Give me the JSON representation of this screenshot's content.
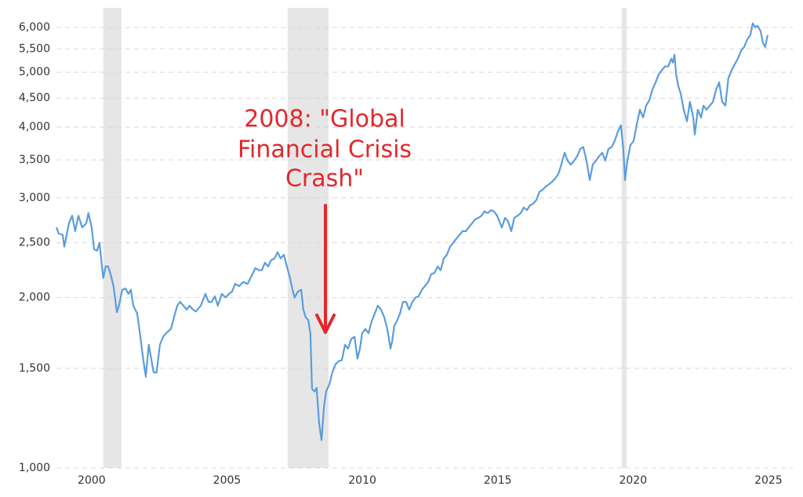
{
  "chart_data": {
    "type": "line",
    "log_scale": true,
    "grid": true,
    "color": "#5b9ddb",
    "shade_color": "#e6e6e6",
    "annotation_color": "#e0282c",
    "annotation": [
      "2008: \"Global",
      "Financial Crisis",
      "Crash\""
    ],
    "shaded_ranges": [
      [
        2000.43,
        2001.1
      ],
      [
        2007.24,
        2008.75
      ],
      [
        2019.58,
        2019.76
      ]
    ],
    "xlim": [
      1998.7,
      2025.9
    ],
    "xticks": [
      2000,
      2005,
      2010,
      2015,
      2020,
      2025
    ],
    "ylim": [
      1000,
      6000
    ],
    "yticks": [
      {
        "value": 1000,
        "label": "1,000"
      },
      {
        "value": 1500,
        "label": "1,500"
      },
      {
        "value": 2000,
        "label": "2,000"
      },
      {
        "value": 2500,
        "label": "2,500"
      },
      {
        "value": 3000,
        "label": "3,000"
      },
      {
        "value": 3500,
        "label": "3,500"
      },
      {
        "value": 4000,
        "label": "4,000"
      },
      {
        "value": 4500,
        "label": "4,500"
      },
      {
        "value": 5000,
        "label": "5,000"
      },
      {
        "value": 5500,
        "label": "5,500"
      },
      {
        "value": 6000,
        "label": "6,000"
      }
    ],
    "x": [
      1998.7,
      1998.78,
      1998.93,
      1998.99,
      1999.16,
      1999.28,
      1999.39,
      1999.51,
      1999.65,
      1999.8,
      1999.88,
      2000.0,
      2000.09,
      2000.2,
      2000.29,
      2000.38,
      2000.43,
      2000.52,
      2000.61,
      2000.7,
      2000.81,
      2000.93,
      2001.01,
      2001.13,
      2001.25,
      2001.36,
      2001.45,
      2001.54,
      2001.68,
      2001.8,
      2001.91,
      2002.0,
      2002.11,
      2002.2,
      2002.29,
      2002.4,
      2002.52,
      2002.64,
      2002.75,
      2002.93,
      2003.04,
      2003.16,
      2003.27,
      2003.39,
      2003.51,
      2003.62,
      2003.74,
      2003.85,
      2004.03,
      2004.2,
      2004.32,
      2004.43,
      2004.55,
      2004.66,
      2004.81,
      2004.95,
      2005.07,
      2005.19,
      2005.3,
      2005.45,
      2005.59,
      2005.76,
      2005.94,
      2006.05,
      2006.17,
      2006.29,
      2006.4,
      2006.52,
      2006.63,
      2006.75,
      2006.87,
      2006.98,
      2007.1,
      2007.21,
      2007.33,
      2007.42,
      2007.5,
      2007.62,
      2007.74,
      2007.82,
      2007.91,
      2008.0,
      2008.08,
      2008.14,
      2008.23,
      2008.31,
      2008.4,
      2008.49,
      2008.58,
      2008.66,
      2008.78,
      2008.89,
      2009.01,
      2009.13,
      2009.24,
      2009.36,
      2009.47,
      2009.59,
      2009.71,
      2009.82,
      2009.91,
      2009.99,
      2010.11,
      2010.23,
      2010.34,
      2010.46,
      2010.57,
      2010.69,
      2010.81,
      2010.92,
      2011.04,
      2011.1,
      2011.18,
      2011.27,
      2011.39,
      2011.5,
      2011.62,
      2011.73,
      2011.85,
      2011.96,
      2012.08,
      2012.2,
      2012.31,
      2012.43,
      2012.54,
      2012.66,
      2012.78,
      2012.89,
      2013.01,
      2013.12,
      2013.24,
      2013.36,
      2013.47,
      2013.59,
      2013.7,
      2013.82,
      2013.93,
      2014.05,
      2014.17,
      2014.28,
      2014.4,
      2014.51,
      2014.63,
      2014.75,
      2014.86,
      2014.98,
      2015.09,
      2015.15,
      2015.27,
      2015.38,
      2015.5,
      2015.61,
      2015.73,
      2015.85,
      2015.96,
      2016.08,
      2016.19,
      2016.31,
      2016.43,
      2016.54,
      2016.66,
      2016.77,
      2016.89,
      2017.01,
      2017.12,
      2017.24,
      2017.35,
      2017.47,
      2017.58,
      2017.7,
      2017.82,
      2017.93,
      2018.05,
      2018.16,
      2018.28,
      2018.4,
      2018.51,
      2018.63,
      2018.74,
      2018.86,
      2018.97,
      2019.09,
      2019.21,
      2019.32,
      2019.44,
      2019.55,
      2019.64,
      2019.7,
      2019.79,
      2019.9,
      2020.02,
      2020.13,
      2020.25,
      2020.37,
      2020.48,
      2020.6,
      2020.71,
      2020.83,
      2020.95,
      2021.06,
      2021.18,
      2021.3,
      2021.41,
      2021.47,
      2021.53,
      2021.59,
      2021.67,
      2021.76,
      2021.87,
      2021.99,
      2022.1,
      2022.22,
      2022.28,
      2022.39,
      2022.51,
      2022.6,
      2022.71,
      2022.83,
      2022.95,
      2023.06,
      2023.18,
      2023.29,
      2023.41,
      2023.52,
      2023.64,
      2023.76,
      2023.87,
      2023.99,
      2024.1,
      2024.22,
      2024.33,
      2024.42,
      2024.51,
      2024.6,
      2024.71,
      2024.8,
      2024.88,
      2024.97
    ],
    "values": [
      2660,
      2595,
      2580,
      2460,
      2705,
      2790,
      2620,
      2790,
      2660,
      2705,
      2820,
      2660,
      2435,
      2420,
      2500,
      2270,
      2165,
      2270,
      2270,
      2200,
      2095,
      1885,
      1935,
      2065,
      2075,
      2030,
      2065,
      1935,
      1875,
      1705,
      1550,
      1450,
      1650,
      1560,
      1475,
      1475,
      1650,
      1705,
      1730,
      1760,
      1845,
      1935,
      1965,
      1935,
      1905,
      1935,
      1905,
      1890,
      1935,
      2030,
      1965,
      1965,
      2010,
      1935,
      2030,
      2000,
      2030,
      2050,
      2115,
      2095,
      2130,
      2115,
      2200,
      2255,
      2235,
      2235,
      2305,
      2270,
      2330,
      2345,
      2405,
      2345,
      2380,
      2270,
      2165,
      2065,
      2000,
      2050,
      2065,
      1905,
      1845,
      1825,
      1730,
      1380,
      1365,
      1385,
      1200,
      1120,
      1280,
      1365,
      1405,
      1475,
      1525,
      1545,
      1550,
      1650,
      1625,
      1690,
      1705,
      1560,
      1625,
      1730,
      1760,
      1730,
      1815,
      1875,
      1935,
      1905,
      1845,
      1760,
      1625,
      1675,
      1785,
      1815,
      1875,
      1965,
      1965,
      1905,
      1965,
      2000,
      2010,
      2065,
      2095,
      2130,
      2200,
      2210,
      2270,
      2235,
      2345,
      2380,
      2460,
      2500,
      2540,
      2580,
      2620,
      2620,
      2660,
      2705,
      2750,
      2765,
      2790,
      2840,
      2820,
      2855,
      2840,
      2790,
      2705,
      2660,
      2765,
      2730,
      2620,
      2765,
      2790,
      2820,
      2885,
      2855,
      2910,
      2930,
      2975,
      3075,
      3100,
      3140,
      3170,
      3205,
      3245,
      3305,
      3435,
      3605,
      3490,
      3435,
      3490,
      3550,
      3660,
      3690,
      3490,
      3225,
      3435,
      3490,
      3550,
      3605,
      3490,
      3660,
      3690,
      3780,
      3930,
      4030,
      3660,
      3225,
      3490,
      3720,
      3780,
      4030,
      4295,
      4160,
      4365,
      4460,
      4650,
      4800,
      4960,
      5040,
      5120,
      5120,
      5285,
      5200,
      5370,
      4960,
      4725,
      4580,
      4295,
      4095,
      4435,
      4160,
      3880,
      4295,
      4160,
      4365,
      4295,
      4365,
      4435,
      4650,
      4800,
      4435,
      4365,
      4880,
      5040,
      5170,
      5285,
      5460,
      5540,
      5720,
      5815,
      6100,
      6000,
      6040,
      5910,
      5630,
      5540,
      5815
    ]
  }
}
